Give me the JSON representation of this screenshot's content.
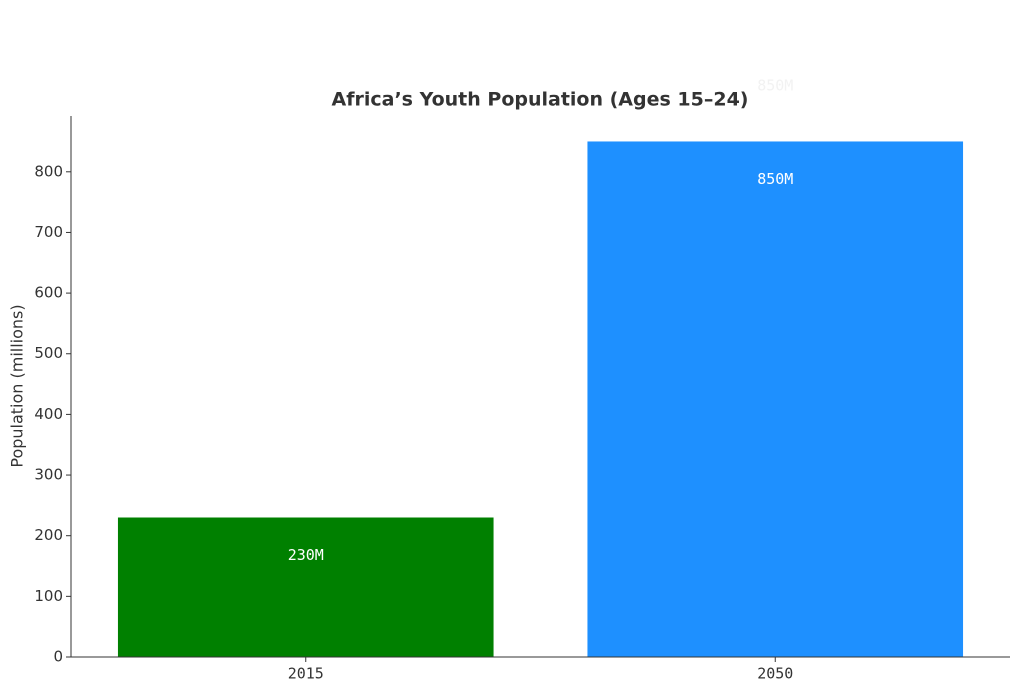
{
  "chart_data": {
    "type": "bar",
    "title": "Africa’s Youth Population (Ages 15–24)",
    "y_label": "Population (millions)",
    "categories": [
      "2015",
      "2050"
    ],
    "values": [
      230,
      850
    ],
    "value_labels": [
      "230M",
      "850M"
    ],
    "colors": [
      "#008000",
      "#1e90ff"
    ],
    "ylim": [
      0,
      892
    ],
    "yticks": [
      0,
      100,
      200,
      300,
      400,
      500,
      600,
      700,
      800
    ]
  }
}
